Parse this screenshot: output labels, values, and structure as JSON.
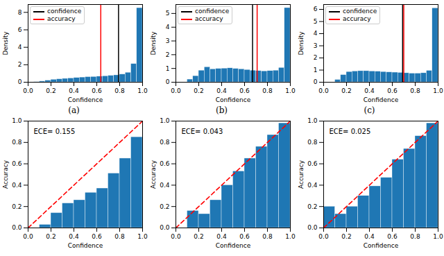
{
  "chart_data": [
    {
      "type": "histogram",
      "caption": "(a)",
      "xlabel": "Confidence",
      "ylabel": "Density",
      "color": "#1f77b4",
      "bins": [
        0,
        0.05,
        0.1,
        0.15,
        0.2,
        0.25,
        0.3,
        0.35,
        0.4,
        0.45,
        0.5,
        0.55,
        0.6,
        0.65,
        0.7,
        0.75,
        0.8,
        0.85,
        0.9,
        0.95,
        1.0
      ],
      "values": [
        0,
        0.03,
        0.1,
        0.2,
        0.3,
        0.35,
        0.4,
        0.45,
        0.5,
        0.55,
        0.6,
        0.62,
        0.65,
        0.7,
        0.75,
        0.8,
        0.9,
        1.1,
        2.1,
        8.5
      ],
      "series": [
        {
          "name": "confidence",
          "type": "rule",
          "color": "black",
          "values": [
            0.79
          ]
        },
        {
          "name": "accuracy",
          "type": "rule",
          "color": "red",
          "values": [
            0.635
          ]
        }
      ],
      "legend": "upper left",
      "xlim": [
        0,
        1.0
      ],
      "xticks": [
        {
          "value": 0,
          "label": "0.0"
        },
        {
          "value": 0.2,
          "label": "0.2"
        },
        {
          "value": 0.4,
          "label": "0.4"
        },
        {
          "value": 0.6,
          "label": "0.6"
        },
        {
          "value": 0.8,
          "label": "0.8"
        },
        {
          "value": 1.0,
          "label": "1.0"
        }
      ],
      "ylim": [
        0,
        8.9
      ],
      "yticks": [
        0,
        2,
        4,
        6,
        8
      ]
    },
    {
      "type": "histogram",
      "caption": "(b)",
      "xlabel": "Confidence",
      "ylabel": "Density",
      "color": "#1f77b4",
      "bins": [
        0,
        0.05,
        0.1,
        0.15,
        0.2,
        0.25,
        0.3,
        0.35,
        0.4,
        0.45,
        0.5,
        0.55,
        0.6,
        0.65,
        0.7,
        0.75,
        0.8,
        0.85,
        0.9,
        0.95,
        1.0
      ],
      "values": [
        0,
        0,
        0.2,
        0.45,
        0.85,
        1.1,
        0.95,
        0.98,
        1.0,
        1.02,
        0.98,
        0.95,
        0.9,
        0.85,
        0.82,
        0.8,
        0.82,
        0.85,
        1.05,
        5.4
      ],
      "series": [
        {
          "name": "confidence",
          "type": "rule",
          "color": "black",
          "values": [
            0.67
          ]
        },
        {
          "name": "accuracy",
          "type": "rule",
          "color": "red",
          "values": [
            0.71
          ]
        }
      ],
      "legend": "upper left",
      "xlim": [
        0,
        1.0
      ],
      "xticks": [
        {
          "value": 0,
          "label": "0.0"
        },
        {
          "value": 0.2,
          "label": "0.2"
        },
        {
          "value": 0.4,
          "label": "0.4"
        },
        {
          "value": 0.6,
          "label": "0.6"
        },
        {
          "value": 0.8,
          "label": "0.8"
        },
        {
          "value": 1.0,
          "label": "1.0"
        }
      ],
      "ylim": [
        0,
        5.65
      ],
      "yticks": [
        0,
        1,
        2,
        3,
        4,
        5
      ]
    },
    {
      "type": "histogram",
      "caption": "(c)",
      "xlabel": "Confidence",
      "ylabel": "Density",
      "color": "#1f77b4",
      "bins": [
        0,
        0.05,
        0.1,
        0.15,
        0.2,
        0.25,
        0.3,
        0.35,
        0.4,
        0.45,
        0.5,
        0.55,
        0.6,
        0.65,
        0.7,
        0.75,
        0.8,
        0.85,
        0.9,
        0.95,
        1.0
      ],
      "values": [
        0,
        0,
        0.2,
        0.6,
        0.85,
        0.9,
        0.92,
        0.92,
        0.9,
        0.88,
        0.85,
        0.82,
        0.8,
        0.78,
        0.75,
        0.72,
        0.72,
        0.75,
        0.95,
        6.1
      ],
      "series": [
        {
          "name": "confidence",
          "type": "rule",
          "color": "black",
          "values": [
            0.69
          ]
        },
        {
          "name": "accuracy",
          "type": "rule",
          "color": "red",
          "values": [
            0.7
          ]
        }
      ],
      "legend": "upper left",
      "xlim": [
        0,
        1.0
      ],
      "xticks": [
        {
          "value": 0,
          "label": "0.0"
        },
        {
          "value": 0.2,
          "label": "0.2"
        },
        {
          "value": 0.4,
          "label": "0.4"
        },
        {
          "value": 0.6,
          "label": "0.6"
        },
        {
          "value": 0.8,
          "label": "0.8"
        },
        {
          "value": 1.0,
          "label": "1.0"
        }
      ],
      "ylim": [
        0,
        6.4
      ],
      "yticks": [
        0,
        1,
        2,
        3,
        4,
        5,
        6
      ]
    },
    {
      "type": "histogram",
      "xlabel": "Confidence",
      "ylabel": "Accuracy",
      "color": "#1f77b4",
      "annotations": [
        "ECE= 0.155"
      ],
      "bins": [
        0,
        0.1,
        0.2,
        0.3,
        0.4,
        0.5,
        0.6,
        0.7,
        0.8,
        0.9,
        1.0
      ],
      "values": [
        0,
        0.03,
        0.14,
        0.23,
        0.26,
        0.33,
        0.37,
        0.51,
        0.65,
        0.85
      ],
      "series": [
        {
          "type": "line",
          "color": "red",
          "line_style": "dashed",
          "x": [
            0,
            1.0
          ],
          "values": [
            0,
            1.0
          ]
        }
      ],
      "xlim": [
        0,
        1.0
      ],
      "xticks": [
        {
          "value": 0,
          "label": "0.0"
        },
        {
          "value": 0.2,
          "label": "0.2"
        },
        {
          "value": 0.4,
          "label": "0.4"
        },
        {
          "value": 0.6,
          "label": "0.6"
        },
        {
          "value": 0.8,
          "label": "0.8"
        },
        {
          "value": 1.0,
          "label": "1.0"
        }
      ],
      "ylim": [
        0,
        1.0
      ],
      "yticks": [
        {
          "value": 0,
          "label": "0.0"
        },
        {
          "value": 0.2,
          "label": "0.2"
        },
        {
          "value": 0.4,
          "label": "0.4"
        },
        {
          "value": 0.6,
          "label": "0.6"
        },
        {
          "value": 0.8,
          "label": "0.8"
        },
        {
          "value": 1.0,
          "label": "1.0"
        }
      ]
    },
    {
      "type": "histogram",
      "xlabel": "Confidence",
      "ylabel": "Accuracy",
      "color": "#1f77b4",
      "annotations": [
        "ECE= 0.043"
      ],
      "bins": [
        0,
        0.1,
        0.2,
        0.3,
        0.4,
        0.5,
        0.6,
        0.7,
        0.8,
        0.9,
        1.0
      ],
      "values": [
        0,
        0.16,
        0.13,
        0.26,
        0.4,
        0.53,
        0.65,
        0.76,
        0.87,
        0.98
      ],
      "series": [
        {
          "type": "line",
          "color": "red",
          "line_style": "dashed",
          "x": [
            0,
            1.0
          ],
          "values": [
            0,
            1.0
          ]
        }
      ],
      "xlim": [
        0,
        1.0
      ],
      "xticks": [
        {
          "value": 0,
          "label": "0.0"
        },
        {
          "value": 0.2,
          "label": "0.2"
        },
        {
          "value": 0.4,
          "label": "0.4"
        },
        {
          "value": 0.6,
          "label": "0.6"
        },
        {
          "value": 0.8,
          "label": "0.8"
        },
        {
          "value": 1.0,
          "label": "1.0"
        }
      ],
      "ylim": [
        0,
        1.0
      ],
      "yticks": [
        {
          "value": 0,
          "label": "0.0"
        },
        {
          "value": 0.2,
          "label": "0.2"
        },
        {
          "value": 0.4,
          "label": "0.4"
        },
        {
          "value": 0.6,
          "label": "0.6"
        },
        {
          "value": 0.8,
          "label": "0.8"
        },
        {
          "value": 1.0,
          "label": "1.0"
        }
      ]
    },
    {
      "type": "histogram",
      "xlabel": "Confidence",
      "ylabel": "Accuracy",
      "color": "#1f77b4",
      "annotations": [
        "ECE= 0.025"
      ],
      "bins": [
        0,
        0.1,
        0.2,
        0.3,
        0.4,
        0.5,
        0.6,
        0.7,
        0.8,
        0.9,
        1.0
      ],
      "values": [
        0.2,
        0.13,
        0.2,
        0.3,
        0.39,
        0.47,
        0.64,
        0.74,
        0.86,
        0.98
      ],
      "series": [
        {
          "type": "line",
          "color": "red",
          "line_style": "dashed",
          "x": [
            0,
            1.0
          ],
          "values": [
            0,
            1.0
          ]
        }
      ],
      "xlim": [
        0,
        1.0
      ],
      "xticks": [
        {
          "value": 0,
          "label": "0.0"
        },
        {
          "value": 0.2,
          "label": "0.2"
        },
        {
          "value": 0.4,
          "label": "0.4"
        },
        {
          "value": 0.6,
          "label": "0.6"
        },
        {
          "value": 0.8,
          "label": "0.8"
        },
        {
          "value": 1.0,
          "label": "1.0"
        }
      ],
      "ylim": [
        0,
        1.0
      ],
      "yticks": [
        {
          "value": 0,
          "label": "0.0"
        },
        {
          "value": 0.2,
          "label": "0.2"
        },
        {
          "value": 0.4,
          "label": "0.4"
        },
        {
          "value": 0.6,
          "label": "0.6"
        },
        {
          "value": 0.8,
          "label": "0.8"
        },
        {
          "value": 1.0,
          "label": "1.0"
        }
      ]
    }
  ]
}
